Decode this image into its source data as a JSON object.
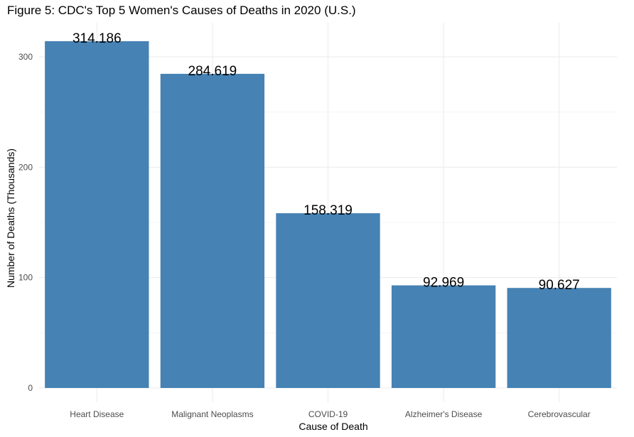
{
  "chart_data": {
    "type": "bar",
    "title": "Figure 5: CDC's Top 5 Women's Causes of Deaths in 2020 (U.S.)",
    "xlabel": "Cause of Death",
    "ylabel": "Number of Deaths (Thousands)",
    "categories": [
      "Heart Disease",
      "Malignant Neoplasms",
      "COVID-19",
      "Alzheimer's Disease",
      "Cerebrovascular"
    ],
    "values": [
      314.186,
      284.619,
      158.319,
      92.969,
      90.627
    ],
    "value_labels": [
      "314.186",
      "284.619",
      "158.319",
      "92.969",
      "90.627"
    ],
    "ylim": [
      0,
      330
    ],
    "yticks": [
      0,
      100,
      200,
      300
    ],
    "bar_color": "#4682b4",
    "grid": true,
    "legend": "none"
  }
}
